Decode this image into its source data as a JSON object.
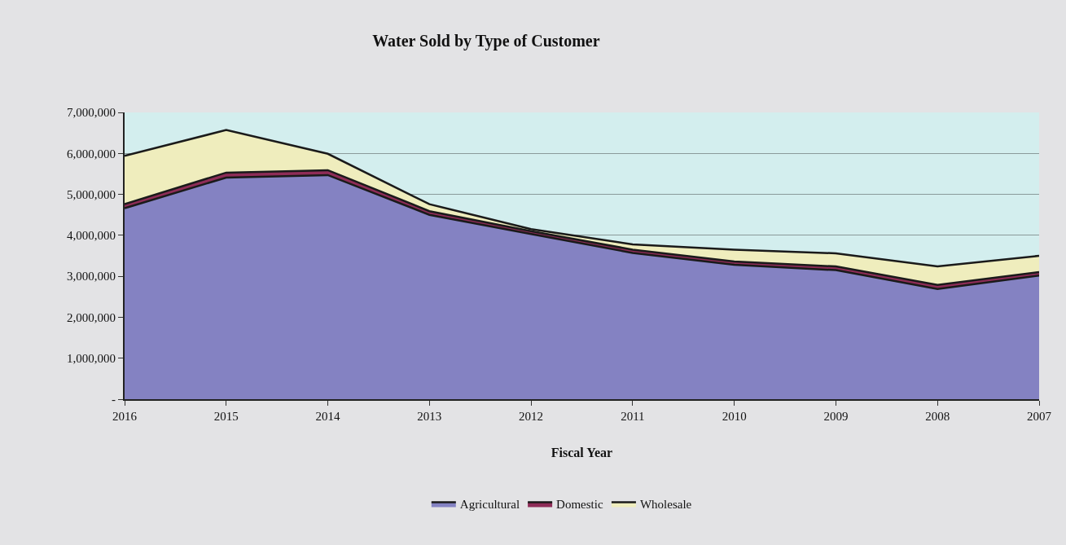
{
  "chart_data": {
    "type": "area",
    "title": "Water Sold by Type of Customer",
    "xlabel": "Fiscal Year",
    "categories": [
      "2016",
      "2015",
      "2014",
      "2013",
      "2012",
      "2011",
      "2010",
      "2009",
      "2008",
      "2007"
    ],
    "stacked": true,
    "grid": "y",
    "legend": "bottom",
    "ylim": [
      0,
      7000000
    ],
    "yticks": [
      {
        "value": 0,
        "label": "-"
      },
      {
        "value": 1000000,
        "label": "1,000,000"
      },
      {
        "value": 2000000,
        "label": "2,000,000"
      },
      {
        "value": 3000000,
        "label": "3,000,000"
      },
      {
        "value": 4000000,
        "label": "4,000,000"
      },
      {
        "value": 5000000,
        "label": "5,000,000"
      },
      {
        "value": 6000000,
        "label": "6,000,000"
      },
      {
        "value": 7000000,
        "label": "7,000,000"
      }
    ],
    "series": [
      {
        "name": "Agricultural",
        "color": "#8482c2",
        "values": [
          4660000,
          5410000,
          5470000,
          4500000,
          4030000,
          3570000,
          3280000,
          3150000,
          2690000,
          3020000
        ]
      },
      {
        "name": "Domestic",
        "color": "#8e2c57",
        "values": [
          100000,
          120000,
          120000,
          90000,
          70000,
          80000,
          80000,
          90000,
          100000,
          80000
        ]
      },
      {
        "name": "Wholesale",
        "color": "#efedbd",
        "values": [
          1180000,
          1040000,
          400000,
          170000,
          50000,
          130000,
          290000,
          320000,
          450000,
          400000
        ]
      }
    ]
  }
}
